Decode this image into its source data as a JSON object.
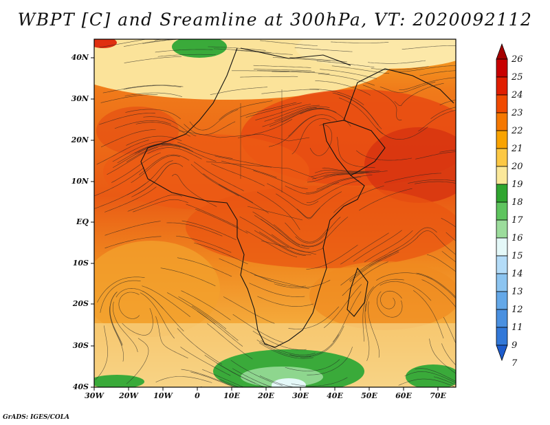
{
  "title": "WBPT [C] and Sreamline at 300hPa, VT: 2020092112",
  "credit": "GrADS: IGES/COLA",
  "map": {
    "lat_labels": [
      "40N",
      "30N",
      "20N",
      "10N",
      "EQ",
      "10S",
      "20S",
      "30S",
      "40S"
    ],
    "lon_labels": [
      "30W",
      "20W",
      "10W",
      "0",
      "10E",
      "20E",
      "30E",
      "40E",
      "50E",
      "60E",
      "70E"
    ],
    "field": "wet-bulb potential temperature",
    "overlay": "streamlines"
  },
  "colorbar": {
    "labels": [
      "26",
      "25",
      "24",
      "23",
      "22",
      "21",
      "20",
      "19",
      "18",
      "17",
      "16",
      "15",
      "14",
      "13",
      "12",
      "11",
      "9",
      "7"
    ],
    "colors": [
      "#a50000",
      "#c80000",
      "#e01e00",
      "#f04a00",
      "#f57800",
      "#f9a300",
      "#fcc844",
      "#fbe89a",
      "#2fa52f",
      "#5ec45e",
      "#9cdc9c",
      "#e4f8f8",
      "#b4dcf8",
      "#8cc4f0",
      "#64a8e8",
      "#4a90e0",
      "#3278d8",
      "#1e5ccc"
    ]
  }
}
